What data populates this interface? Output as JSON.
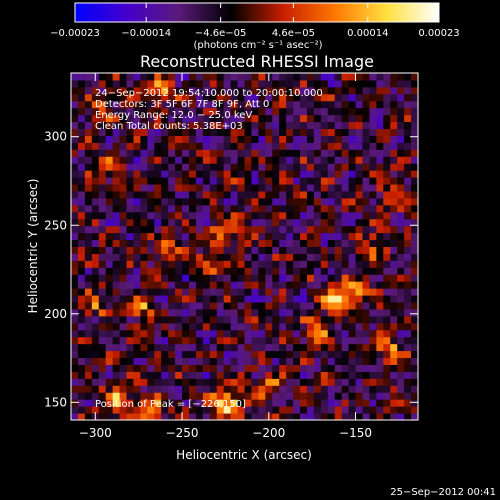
{
  "chart_data": {
    "type": "heatmap",
    "title": "Reconstructed RHESSI Image",
    "xlabel": "Heliocentric X (arcsec)",
    "ylabel": "Heliocentric Y (arcsec)",
    "xlim": [
      -314,
      -114
    ],
    "ylim": [
      140,
      336
    ],
    "x_ticks": [
      -300,
      -250,
      -200,
      -150
    ],
    "x_tick_labels": [
      "−300",
      "−250",
      "−200",
      "−150"
    ],
    "y_ticks": [
      150,
      200,
      250,
      300
    ],
    "y_tick_labels": [
      "150",
      "200",
      "250",
      "300"
    ],
    "colorbar": {
      "ticks": [
        -0.00023,
        -0.00014,
        -4.6e-05,
        4.6e-05,
        0.00014,
        0.00023
      ],
      "tick_labels": [
        "−0.00023",
        "−0.00014",
        "−4.6e−05",
        "4.6e−05",
        "0.00014",
        "0.00023"
      ],
      "range": [
        -0.00023,
        0.00023
      ],
      "unit_label": "(photons cm⁻² s⁻¹ asec⁻²)",
      "colors": [
        "#0000ff",
        "#4400cc",
        "#5a1a78",
        "#000000",
        "#c81e00",
        "#ff7800",
        "#ffe040",
        "#ffffff"
      ]
    },
    "annotations": [
      "24−Sep−2012 19:54:10.000 to 20:00:10.000",
      "Detectors: 3F 5F 6F 7F 8F 9F, Att 0",
      "Energy Range: 12.0 − 25.0 keV",
      "Clean      Total counts: 5.38E+03"
    ],
    "peak_label": "Position of Peak = [−226,150]",
    "peak": [
      -226,
      150
    ],
    "hotspots": [
      {
        "x": -224,
        "y": 150,
        "v": 0.00023
      },
      {
        "x": -288,
        "y": 150,
        "v": 0.00018
      },
      {
        "x": -268,
        "y": 146,
        "v": 0.00016
      },
      {
        "x": -300,
        "y": 206,
        "v": 0.00012
      },
      {
        "x": -273,
        "y": 204,
        "v": 0.00014
      },
      {
        "x": -256,
        "y": 236,
        "v": 0.00012
      },
      {
        "x": -226,
        "y": 246,
        "v": 0.00015
      },
      {
        "x": -234,
        "y": 230,
        "v": 0.00011
      },
      {
        "x": -162,
        "y": 208,
        "v": 0.00016
      },
      {
        "x": -150,
        "y": 212,
        "v": 0.00014
      },
      {
        "x": -172,
        "y": 190,
        "v": 0.00011
      },
      {
        "x": -128,
        "y": 268,
        "v": 0.00012
      },
      {
        "x": -140,
        "y": 240,
        "v": 0.0001
      },
      {
        "x": -262,
        "y": 326,
        "v": 0.00013
      },
      {
        "x": -296,
        "y": 314,
        "v": 0.00012
      },
      {
        "x": -292,
        "y": 282,
        "v": 0.00011
      },
      {
        "x": -130,
        "y": 180,
        "v": 0.00013
      },
      {
        "x": -200,
        "y": 160,
        "v": 0.0001
      }
    ]
  },
  "footer": {
    "timestamp": "25−Sep−2012 00:41"
  }
}
